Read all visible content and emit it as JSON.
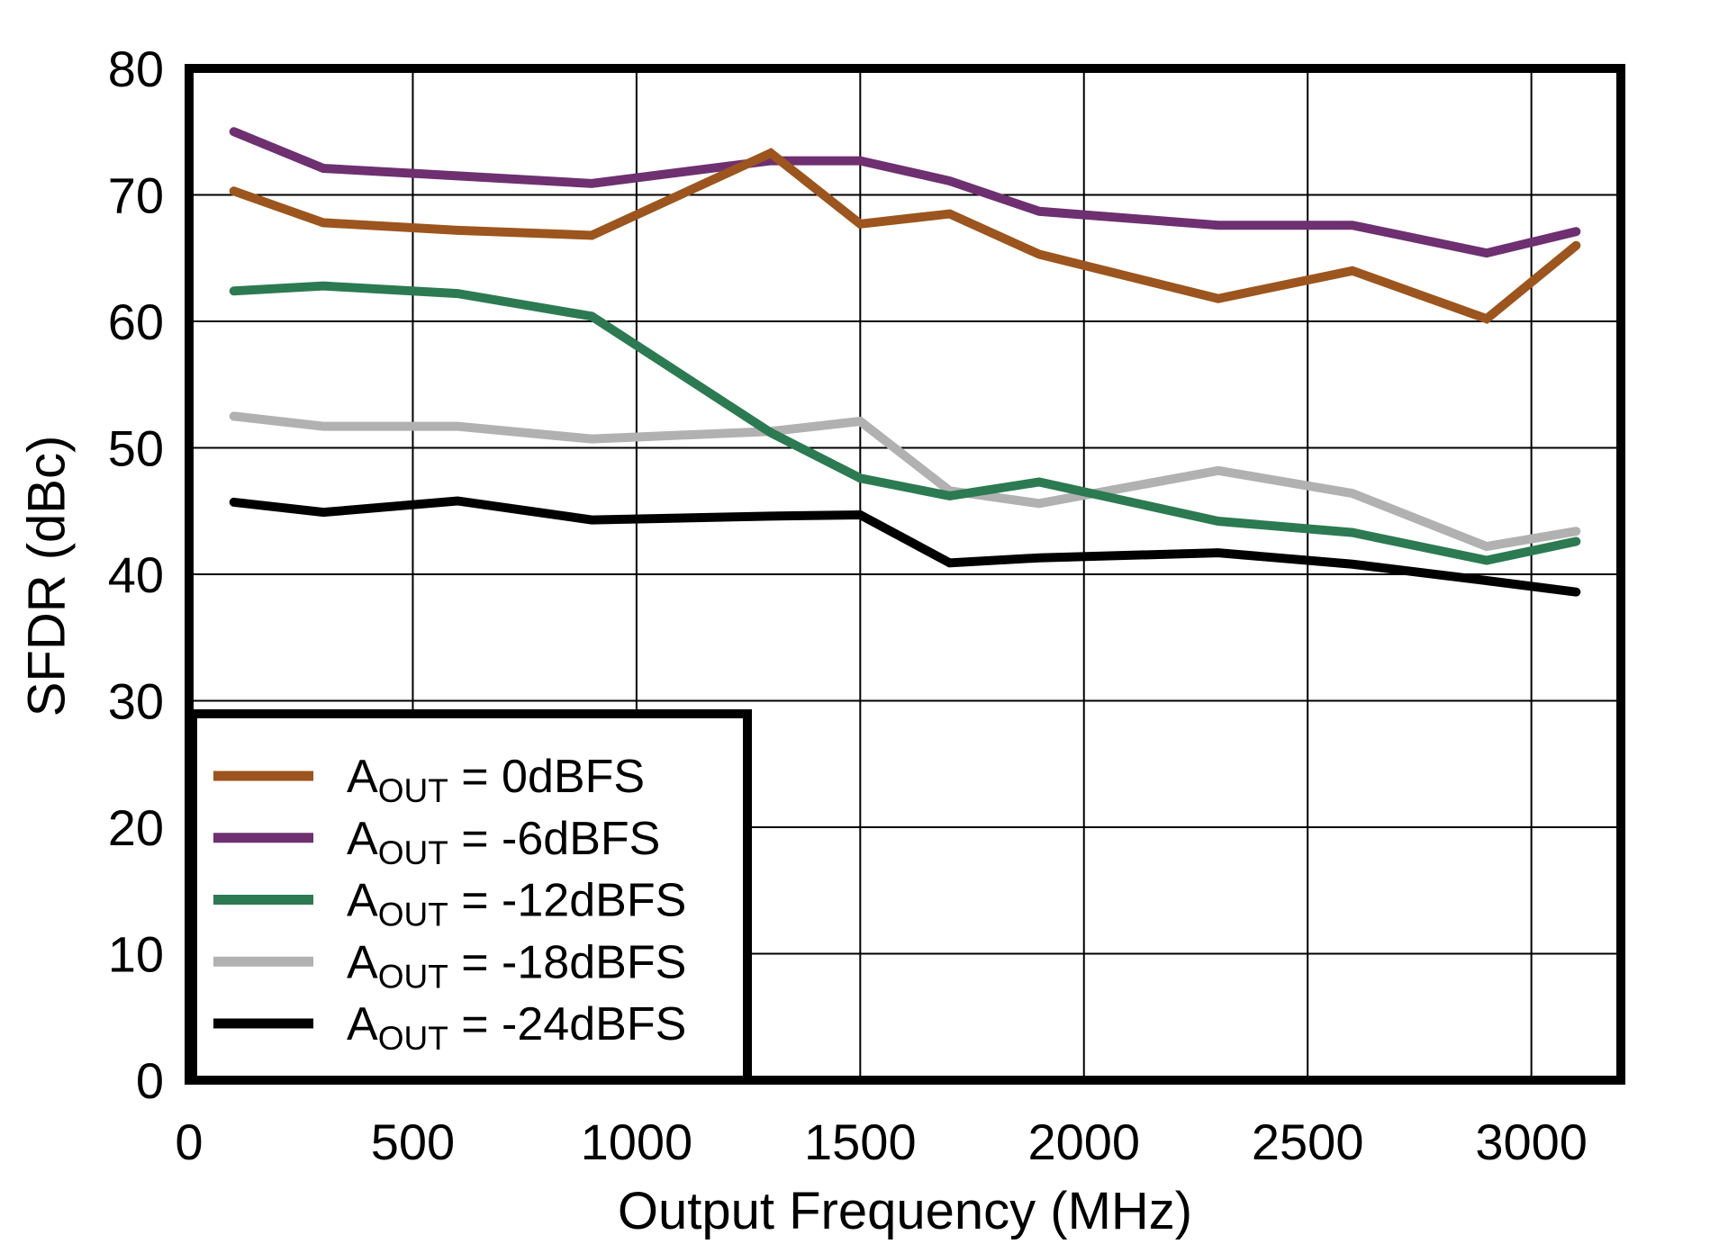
{
  "figure": {
    "background": "#ffffff",
    "frame_color": "#000000",
    "grid_color": "#000000"
  },
  "chart_data": {
    "type": "line",
    "title": "",
    "xlabel": "Output Frequency (MHz)",
    "ylabel": "SFDR (dBc)",
    "xlim": [
      0,
      3200
    ],
    "ylim": [
      0,
      80
    ],
    "x_ticks": [
      0,
      500,
      1000,
      1500,
      2000,
      2500,
      3000
    ],
    "y_ticks": [
      0,
      10,
      20,
      30,
      40,
      50,
      60,
      70,
      80
    ],
    "grid": true,
    "legend_position": "bottom-left",
    "x": [
      100,
      300,
      600,
      900,
      1300,
      1500,
      1700,
      1900,
      2300,
      2600,
      2900,
      3100
    ],
    "series": [
      {
        "name": "AOUT = 0dBFS",
        "legend": {
          "prefix": "A",
          "subscript": "OUT",
          "suffix": " = 0dBFS"
        },
        "color": "#9C551E",
        "values": [
          70.3,
          67.8,
          67.2,
          66.8,
          73.3,
          67.7,
          68.5,
          65.3,
          61.8,
          64.0,
          60.2,
          66.0
        ]
      },
      {
        "name": "AOUT = -6dBFS",
        "legend": {
          "prefix": "A",
          "subscript": "OUT",
          "suffix": " = -6dBFS"
        },
        "color": "#6E3070",
        "values": [
          75.0,
          72.1,
          71.5,
          70.9,
          72.7,
          72.7,
          71.1,
          68.7,
          67.6,
          67.6,
          65.4,
          67.1
        ]
      },
      {
        "name": "AOUT = -12dBFS",
        "legend": {
          "prefix": "A",
          "subscript": "OUT",
          "suffix": " = -12dBFS"
        },
        "color": "#2C7A52",
        "values": [
          62.4,
          62.8,
          62.2,
          60.4,
          51.2,
          47.6,
          46.2,
          47.3,
          44.2,
          43.3,
          41.1,
          42.6
        ]
      },
      {
        "name": "AOUT = -18dBFS",
        "legend": {
          "prefix": "A",
          "subscript": "OUT",
          "suffix": " = -18dBFS"
        },
        "color": "#B1B1B1",
        "values": [
          52.5,
          51.7,
          51.7,
          50.7,
          51.3,
          52.1,
          46.6,
          45.6,
          48.2,
          46.4,
          42.2,
          43.4
        ]
      },
      {
        "name": "AOUT = -24dBFS",
        "legend": {
          "prefix": "A",
          "subscript": "OUT",
          "suffix": " = -24dBFS"
        },
        "color": "#000000",
        "values": [
          45.7,
          44.9,
          45.8,
          44.3,
          44.6,
          44.7,
          40.9,
          41.3,
          41.7,
          40.8,
          39.5,
          38.6
        ]
      }
    ]
  }
}
